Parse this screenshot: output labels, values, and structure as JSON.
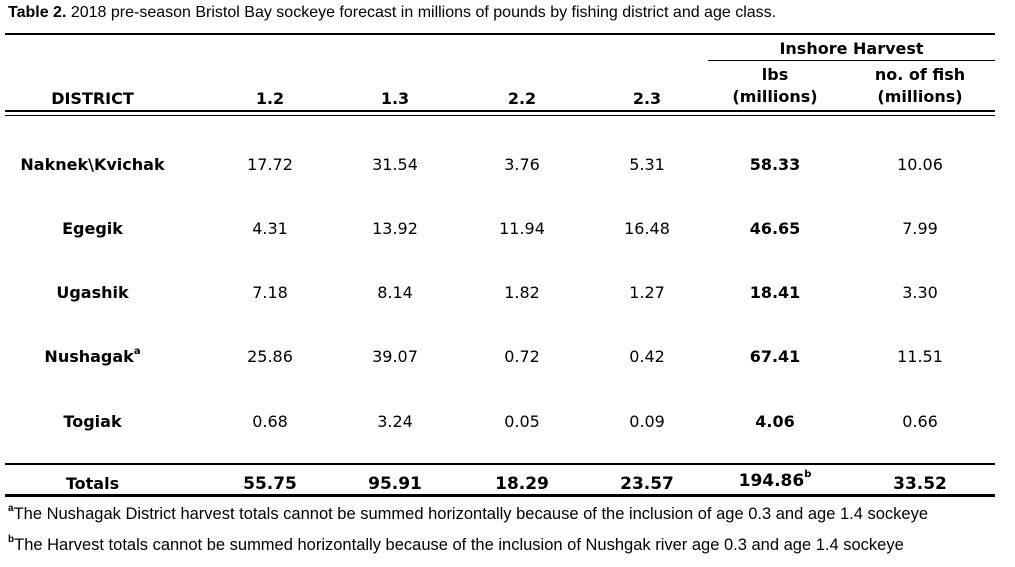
{
  "caption": {
    "label": "Table 2.",
    "text": "2018 pre-season Bristol Bay sockeye forecast in millions of pounds by fishing district and age class."
  },
  "header": {
    "group": "Inshore Harvest",
    "district": "DISTRICT",
    "age_12": "1.2",
    "age_13": "1.3",
    "age_22": "2.2",
    "age_23": "2.3",
    "lbs_line1": "lbs",
    "lbs_line2": "(millions)",
    "fish_line1": "no. of fish",
    "fish_line2": "(millions)"
  },
  "rows": [
    {
      "district": "Naknek\\Kvichak",
      "sup": "",
      "a12": "17.72",
      "a13": "31.54",
      "a22": "3.76",
      "a23": "5.31",
      "lbs": "58.33",
      "fish": "10.06"
    },
    {
      "district": "Egegik",
      "sup": "",
      "a12": "4.31",
      "a13": "13.92",
      "a22": "11.94",
      "a23": "16.48",
      "lbs": "46.65",
      "fish": "7.99"
    },
    {
      "district": "Ugashik",
      "sup": "",
      "a12": "7.18",
      "a13": "8.14",
      "a22": "1.82",
      "a23": "1.27",
      "lbs": "18.41",
      "fish": "3.30"
    },
    {
      "district": "Nushagak",
      "sup": "a",
      "a12": "25.86",
      "a13": "39.07",
      "a22": "0.72",
      "a23": "0.42",
      "lbs": "67.41",
      "fish": "11.51"
    },
    {
      "district": "Togiak",
      "sup": "",
      "a12": "0.68",
      "a13": "3.24",
      "a22": "0.05",
      "a23": "0.09",
      "lbs": "4.06",
      "fish": "0.66"
    }
  ],
  "totals": {
    "label": "Totals",
    "a12": "55.75",
    "a13": "95.91",
    "a22": "18.29",
    "a23": "23.57",
    "lbs": "194.86",
    "lbs_sup": "b",
    "fish": "33.52"
  },
  "footnotes": [
    {
      "mark": "a",
      "text": "The Nushagak District harvest totals cannot be summed horizontally because of the inclusion of age 0.3 and age 1.4 sockeye"
    },
    {
      "mark": "b",
      "text": "The Harvest totals cannot be summed horizontally because of the inclusion of Nushgak river age 0.3 and age 1.4 sockeye"
    }
  ]
}
